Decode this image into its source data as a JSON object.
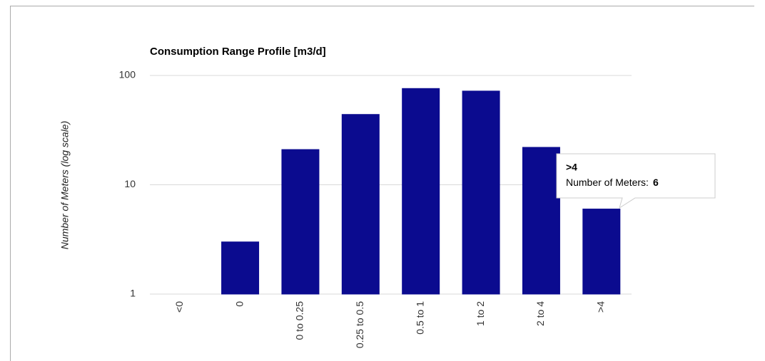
{
  "chart_data": {
    "type": "bar",
    "title": "Consumption Range Profile [m3/d]",
    "y_label": "Number of Meters (log scale)",
    "categories": [
      "<0",
      "0",
      "0 to 0.25",
      "0.25 to 0.5",
      "0.5 to 1",
      "1 to 2",
      "2 to 4",
      ">4"
    ],
    "values": [
      1,
      3,
      21,
      44,
      76,
      72,
      22,
      6
    ],
    "color": "#0b0b8f",
    "ylim": [
      1,
      100
    ],
    "yticks": [
      1,
      10,
      100
    ],
    "log_scale": true,
    "grid": true,
    "tooltip": {
      "label": "Number of Meters:"
    }
  }
}
